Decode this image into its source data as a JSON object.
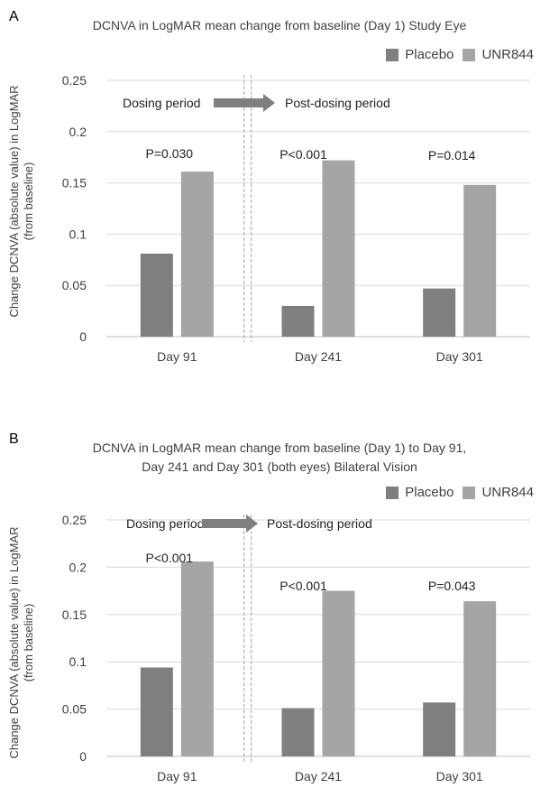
{
  "colors": {
    "placebo": "#7f7f7f",
    "unr844": "#a5a5a5",
    "grid": "#d9d9d9",
    "axis": "#bfbfbf",
    "text": "#404040",
    "arrow": "#7f7f7f"
  },
  "legend": {
    "placebo": "Placebo",
    "unr844": "UNR844"
  },
  "chart_data": [
    {
      "panel": "A",
      "type": "bar",
      "title_lines": [
        "DCNVA in LogMAR mean change from baseline (Day 1) Study Eye"
      ],
      "ylabel_lines": [
        "Change DCNVA (absolute value) in LogMAR",
        "(from baseline)"
      ],
      "xlabel": "",
      "ylim": [
        0,
        0.25
      ],
      "yticks": [
        0,
        0.05,
        0.1,
        0.15,
        0.2,
        0.25
      ],
      "ytick_labels": [
        "0",
        "0.05",
        "0.1",
        "0.15",
        "0.2",
        "0.25"
      ],
      "categories": [
        "Day 91",
        "Day 241",
        "Day 301"
      ],
      "series": [
        {
          "name": "Placebo",
          "values": [
            0.081,
            0.03,
            0.047
          ]
        },
        {
          "name": "UNR844",
          "values": [
            0.161,
            0.172,
            0.148
          ]
        }
      ],
      "pvalues": [
        "P=0.030",
        "P<0.001",
        "P=0.014"
      ],
      "grid": true,
      "legend_position": "top-right",
      "annotations": {
        "dosing": "Dosing period",
        "post_dosing": "Post-dosing period"
      }
    },
    {
      "panel": "B",
      "type": "bar",
      "title_lines": [
        "DCNVA in LogMAR mean change from baseline (Day 1) to Day 91,",
        "Day 241 and Day 301 (both eyes) Bilateral Vision"
      ],
      "ylabel_lines": [
        "Change DCNVA (absolute value) in LogMAR",
        "(from baseline)"
      ],
      "xlabel": "",
      "ylim": [
        0,
        0.25
      ],
      "yticks": [
        0,
        0.05,
        0.1,
        0.15,
        0.2,
        0.25
      ],
      "ytick_labels": [
        "0",
        "0.05",
        "0.1",
        "0.15",
        "0.2",
        "0.25"
      ],
      "categories": [
        "Day 91",
        "Day 241",
        "Day 301"
      ],
      "series": [
        {
          "name": "Placebo",
          "values": [
            0.094,
            0.051,
            0.057
          ]
        },
        {
          "name": "UNR844",
          "values": [
            0.206,
            0.175,
            0.164
          ]
        }
      ],
      "pvalues": [
        "P<0.001",
        "P<0.001",
        "P=0.043"
      ],
      "grid": true,
      "legend_position": "top-right",
      "annotations": {
        "dosing": "Dosing period",
        "post_dosing": "Post-dosing period"
      }
    }
  ]
}
